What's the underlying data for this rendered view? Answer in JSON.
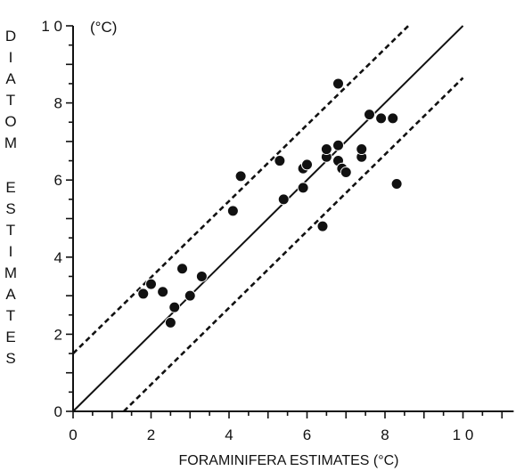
{
  "chart_data": {
    "type": "scatter",
    "title": "",
    "unit_label": "(°C)",
    "xlabel": "FORAMINIFERA ESTIMATES (°C)",
    "ylabel": "DIATOM ESTIMATES",
    "ylabel_letters": [
      "D",
      "I",
      "A",
      "T",
      "O",
      "M",
      "E",
      "S",
      "T",
      "I",
      "M",
      "A",
      "T",
      "E",
      "S"
    ],
    "xlim": [
      0,
      11.3
    ],
    "ylim": [
      0,
      10
    ],
    "x_ticks": [
      0,
      2,
      4,
      6,
      8,
      10
    ],
    "x_tick_labels": [
      "0",
      "2",
      "4",
      "6",
      "8",
      "1 0"
    ],
    "y_ticks": [
      0,
      2,
      4,
      6,
      8,
      10
    ],
    "y_tick_labels": [
      "0",
      "2",
      "4",
      "6",
      "8",
      "1 0"
    ],
    "grid": false,
    "lines": [
      {
        "style": "solid",
        "x": [
          0,
          10
        ],
        "y": [
          0,
          10
        ]
      },
      {
        "style": "dashed",
        "x": [
          0,
          8.6
        ],
        "y": [
          1.5,
          10.0
        ]
      },
      {
        "style": "dashed",
        "x": [
          1.3,
          10
        ],
        "y": [
          0,
          8.65
        ]
      }
    ],
    "points": [
      {
        "x": 1.8,
        "y": 3.05
      },
      {
        "x": 2.0,
        "y": 3.3
      },
      {
        "x": 2.3,
        "y": 3.1
      },
      {
        "x": 2.5,
        "y": 2.3
      },
      {
        "x": 2.6,
        "y": 2.7
      },
      {
        "x": 2.8,
        "y": 3.7
      },
      {
        "x": 3.0,
        "y": 3.0
      },
      {
        "x": 3.3,
        "y": 3.5
      },
      {
        "x": 4.1,
        "y": 5.2
      },
      {
        "x": 4.3,
        "y": 6.1
      },
      {
        "x": 5.3,
        "y": 6.5
      },
      {
        "x": 5.4,
        "y": 5.5
      },
      {
        "x": 5.9,
        "y": 5.8
      },
      {
        "x": 5.9,
        "y": 6.3
      },
      {
        "x": 6.0,
        "y": 6.4
      },
      {
        "x": 6.4,
        "y": 4.8
      },
      {
        "x": 6.5,
        "y": 6.6
      },
      {
        "x": 6.5,
        "y": 6.8
      },
      {
        "x": 6.8,
        "y": 6.9
      },
      {
        "x": 6.8,
        "y": 6.5
      },
      {
        "x": 6.8,
        "y": 8.5
      },
      {
        "x": 6.9,
        "y": 6.3
      },
      {
        "x": 7.0,
        "y": 6.2
      },
      {
        "x": 7.4,
        "y": 6.6
      },
      {
        "x": 7.4,
        "y": 6.8
      },
      {
        "x": 7.6,
        "y": 7.7
      },
      {
        "x": 7.9,
        "y": 7.6
      },
      {
        "x": 8.2,
        "y": 7.6
      },
      {
        "x": 8.3,
        "y": 5.9
      }
    ]
  }
}
